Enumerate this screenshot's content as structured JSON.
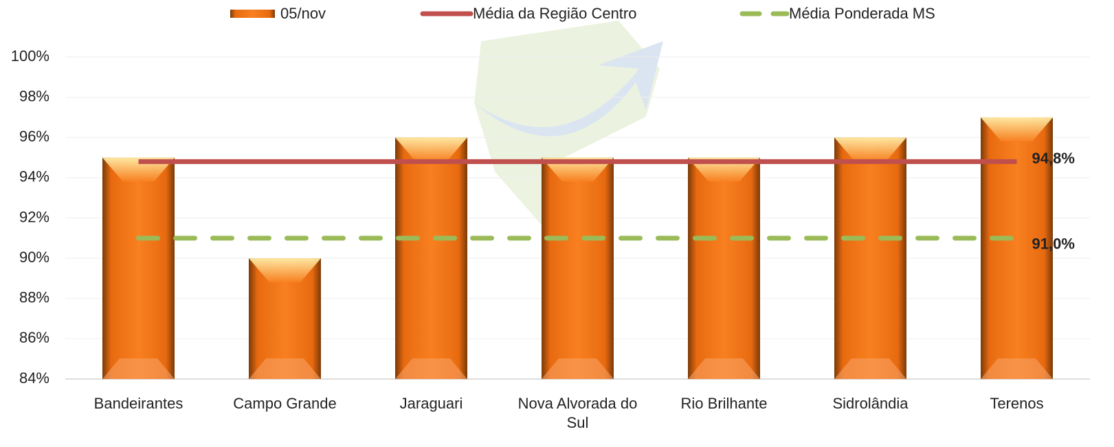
{
  "chart_data": {
    "type": "bar",
    "categories": [
      "Bandeirantes",
      "Campo Grande",
      "Jaraguari",
      "Nova Alvorada do Sul",
      "Rio Brilhante",
      "Sidrolândia",
      "Terenos"
    ],
    "series": [
      {
        "name": "05/nov",
        "color": "#f07010",
        "values": [
          95,
          90,
          96,
          95,
          95,
          96,
          97
        ]
      },
      {
        "name": "Média da Região Centro",
        "type": "line",
        "color": "#c0504d",
        "values": [
          94.8,
          94.8,
          94.8,
          94.8,
          94.8,
          94.8,
          94.8
        ],
        "value_labels": [
          null,
          null,
          null,
          null,
          null,
          null,
          "94,8%"
        ]
      },
      {
        "name": "Média Ponderada MS",
        "type": "line",
        "dashed": true,
        "color": "#9bbb59",
        "values": [
          91.0,
          91.0,
          91.0,
          91.0,
          91.0,
          91.0,
          91.0
        ],
        "value_labels": [
          null,
          null,
          null,
          null,
          null,
          null,
          "91,0%"
        ]
      }
    ],
    "ylim": [
      84,
      100
    ],
    "yticks": [
      {
        "value": 84,
        "label": "84%"
      },
      {
        "value": 86,
        "label": "86%"
      },
      {
        "value": 88,
        "label": "88%"
      },
      {
        "value": 90,
        "label": "90%"
      },
      {
        "value": 92,
        "label": "92%"
      },
      {
        "value": 94,
        "label": "94%"
      },
      {
        "value": 96,
        "label": "96%"
      },
      {
        "value": 98,
        "label": "98%"
      },
      {
        "value": 100,
        "label": "100%"
      }
    ],
    "grid": true,
    "legend": "top"
  }
}
